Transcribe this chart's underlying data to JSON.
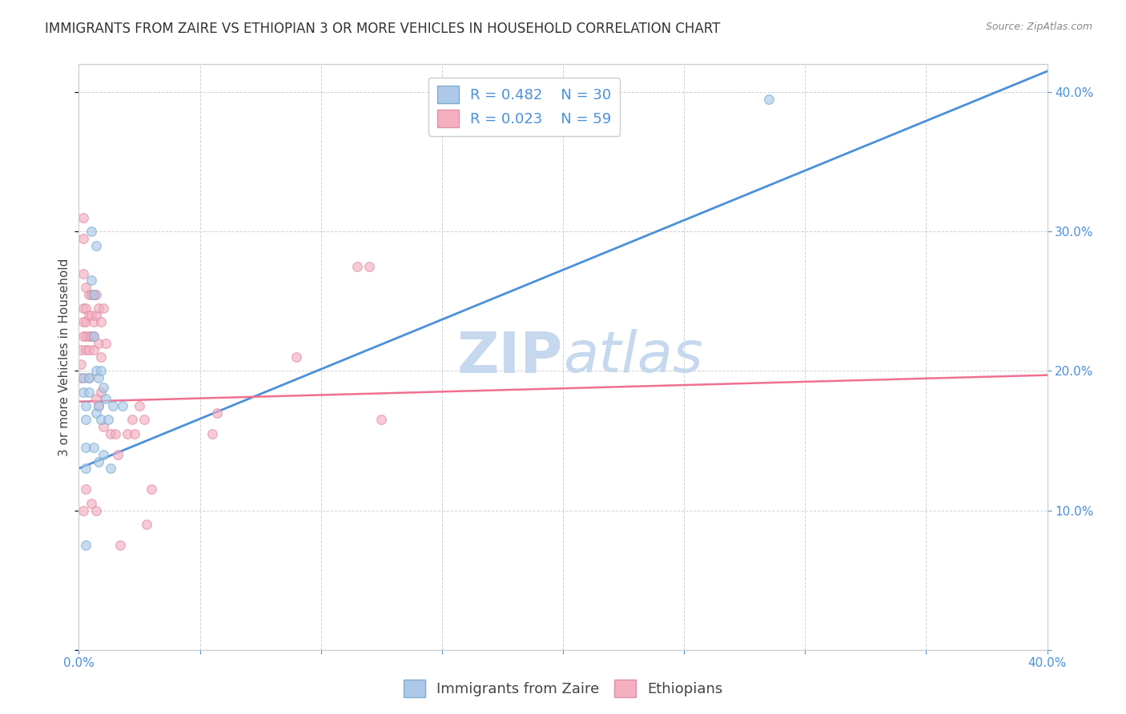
{
  "title": "IMMIGRANTS FROM ZAIRE VS ETHIOPIAN 3 OR MORE VEHICLES IN HOUSEHOLD CORRELATION CHART",
  "source": "Source: ZipAtlas.com",
  "ylabel": "3 or more Vehicles in Household",
  "xlim": [
    0.0,
    0.4
  ],
  "ylim": [
    0.0,
    0.42
  ],
  "legend_zaire_R": "R = 0.482",
  "legend_zaire_N": "N = 30",
  "legend_ethiopian_R": "R = 0.023",
  "legend_ethiopian_N": "N = 59",
  "zaire_color": "#adc8e8",
  "ethiopian_color": "#f4afc0",
  "zaire_line_color": "#4a90d9",
  "ethiopian_line_color": "#f07090",
  "legend_text_color": "#4a90d9",
  "watermark_zip": "ZIP",
  "watermark_atlas": "atlas",
  "zaire_scatter_x": [
    0.002,
    0.002,
    0.003,
    0.003,
    0.003,
    0.003,
    0.003,
    0.004,
    0.004,
    0.005,
    0.005,
    0.006,
    0.006,
    0.006,
    0.007,
    0.007,
    0.007,
    0.008,
    0.008,
    0.008,
    0.009,
    0.009,
    0.01,
    0.01,
    0.011,
    0.012,
    0.013,
    0.014,
    0.018,
    0.285
  ],
  "zaire_scatter_y": [
    0.195,
    0.185,
    0.175,
    0.165,
    0.145,
    0.13,
    0.075,
    0.195,
    0.185,
    0.3,
    0.265,
    0.255,
    0.225,
    0.145,
    0.29,
    0.2,
    0.17,
    0.195,
    0.175,
    0.135,
    0.2,
    0.165,
    0.188,
    0.14,
    0.18,
    0.165,
    0.13,
    0.175,
    0.175,
    0.395
  ],
  "ethiopian_scatter_x": [
    0.001,
    0.001,
    0.001,
    0.002,
    0.002,
    0.002,
    0.002,
    0.002,
    0.002,
    0.002,
    0.003,
    0.003,
    0.003,
    0.003,
    0.003,
    0.003,
    0.004,
    0.004,
    0.004,
    0.004,
    0.004,
    0.005,
    0.005,
    0.005,
    0.005,
    0.006,
    0.006,
    0.006,
    0.006,
    0.007,
    0.007,
    0.007,
    0.007,
    0.008,
    0.008,
    0.008,
    0.009,
    0.009,
    0.009,
    0.01,
    0.01,
    0.011,
    0.013,
    0.015,
    0.016,
    0.017,
    0.02,
    0.022,
    0.023,
    0.025,
    0.027,
    0.028,
    0.03,
    0.055,
    0.057,
    0.09,
    0.115,
    0.12,
    0.125
  ],
  "ethiopian_scatter_y": [
    0.215,
    0.205,
    0.195,
    0.31,
    0.295,
    0.27,
    0.245,
    0.235,
    0.225,
    0.1,
    0.26,
    0.245,
    0.235,
    0.225,
    0.215,
    0.115,
    0.255,
    0.24,
    0.225,
    0.215,
    0.195,
    0.255,
    0.24,
    0.225,
    0.105,
    0.255,
    0.235,
    0.225,
    0.215,
    0.255,
    0.24,
    0.18,
    0.1,
    0.245,
    0.22,
    0.175,
    0.235,
    0.21,
    0.185,
    0.245,
    0.16,
    0.22,
    0.155,
    0.155,
    0.14,
    0.075,
    0.155,
    0.165,
    0.155,
    0.175,
    0.165,
    0.09,
    0.115,
    0.155,
    0.17,
    0.21,
    0.275,
    0.275,
    0.165
  ],
  "zaire_trend_x": [
    0.0,
    0.4
  ],
  "zaire_trend_y": [
    0.13,
    0.415
  ],
  "ethiopian_trend_x": [
    0.0,
    0.4
  ],
  "ethiopian_trend_y": [
    0.178,
    0.197
  ],
  "background_color": "#ffffff",
  "grid_color": "#cccccc",
  "title_fontsize": 12,
  "axis_label_fontsize": 11,
  "tick_fontsize": 11,
  "legend_fontsize": 13,
  "watermark_fontsize": 52,
  "watermark_color": "#c5d8ee",
  "scatter_size": 70,
  "scatter_alpha": 0.65,
  "scatter_linewidth": 1.0,
  "scatter_edgecolor_zaire": "#7aafd0",
  "scatter_edgecolor_ethiopian": "#e090a8"
}
